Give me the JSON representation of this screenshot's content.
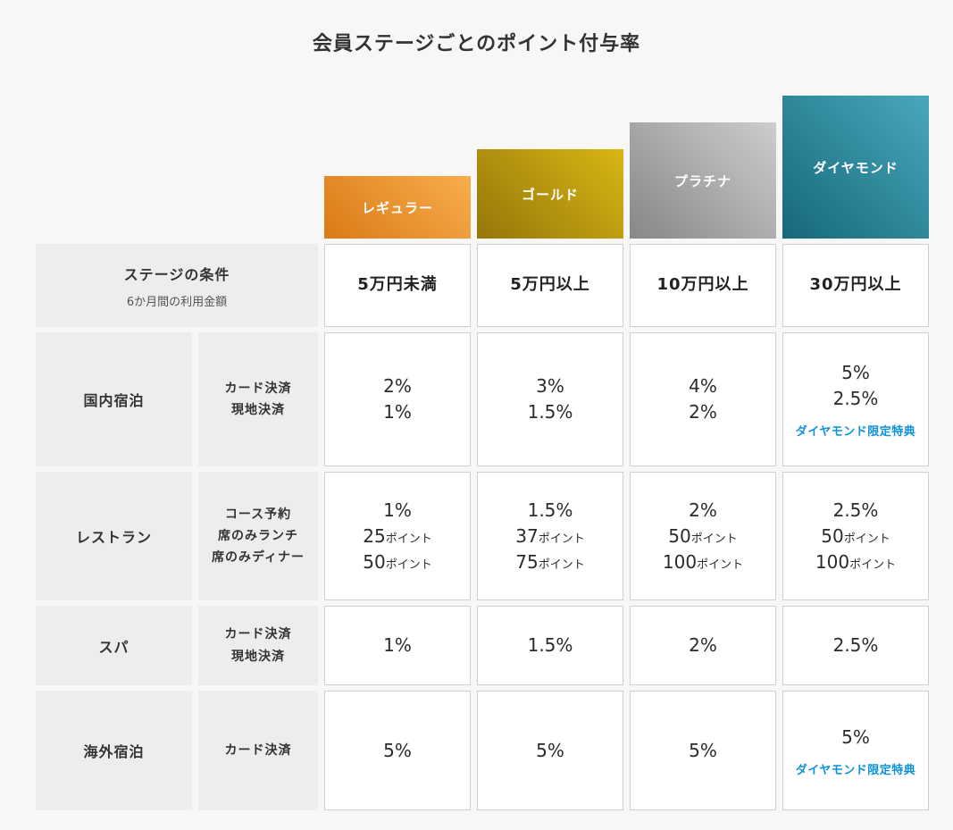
{
  "colors": {
    "page_background": "#f7f7f7",
    "label_cell_background": "#ededed",
    "value_cell_background": "#ffffff",
    "value_cell_border": "#cfcfcf",
    "text_color": "#333333",
    "link_color": "#0f92d9",
    "tier_regular_gradient": [
      "#da7a16",
      "#f8ad4e"
    ],
    "tier_gold_gradient": [
      "#95760a",
      "#d7b714"
    ],
    "tier_platinum_gradient": [
      "#878787",
      "#cdcdcd"
    ],
    "tier_diamond_gradient": [
      "#156879",
      "#4aa7bb"
    ]
  },
  "chart_data": {
    "type": "table",
    "title": "会員ステージごとのポイント付与率",
    "tiers": [
      "レギュラー",
      "ゴールド",
      "プラチナ",
      "ダイヤモンド"
    ],
    "rows": [
      {
        "category": "ステージの条件",
        "category_sub": "6か月間の利用金額",
        "cells": [
          {
            "lines": [
              {
                "num": "5万円未満",
                "unit": ""
              }
            ]
          },
          {
            "lines": [
              {
                "num": "5万円以上",
                "unit": ""
              }
            ]
          },
          {
            "lines": [
              {
                "num": "10万円以上",
                "unit": ""
              }
            ]
          },
          {
            "lines": [
              {
                "num": "30万円以上",
                "unit": ""
              }
            ]
          }
        ]
      },
      {
        "category": "国内宿泊",
        "methods": [
          "カード決済",
          "現地決済"
        ],
        "cells": [
          {
            "lines": [
              {
                "num": "2%",
                "unit": ""
              },
              {
                "num": "1%",
                "unit": ""
              }
            ]
          },
          {
            "lines": [
              {
                "num": "3%",
                "unit": ""
              },
              {
                "num": "1.5%",
                "unit": ""
              }
            ]
          },
          {
            "lines": [
              {
                "num": "4%",
                "unit": ""
              },
              {
                "num": "2%",
                "unit": ""
              }
            ]
          },
          {
            "lines": [
              {
                "num": "5%",
                "unit": ""
              },
              {
                "num": "2.5%",
                "unit": ""
              }
            ],
            "link": "ダイヤモンド限定特典"
          }
        ]
      },
      {
        "category": "レストラン",
        "methods": [
          "コース予約",
          "席のみランチ",
          "席のみディナー"
        ],
        "cells": [
          {
            "lines": [
              {
                "num": "1%",
                "unit": ""
              },
              {
                "num": "25",
                "unit": "ポイント"
              },
              {
                "num": "50",
                "unit": "ポイント"
              }
            ]
          },
          {
            "lines": [
              {
                "num": "1.5%",
                "unit": ""
              },
              {
                "num": "37",
                "unit": "ポイント"
              },
              {
                "num": "75",
                "unit": "ポイント"
              }
            ]
          },
          {
            "lines": [
              {
                "num": "2%",
                "unit": ""
              },
              {
                "num": "50",
                "unit": "ポイント"
              },
              {
                "num": "100",
                "unit": "ポイント"
              }
            ]
          },
          {
            "lines": [
              {
                "num": "2.5%",
                "unit": ""
              },
              {
                "num": "50",
                "unit": "ポイント"
              },
              {
                "num": "100",
                "unit": "ポイント"
              }
            ]
          }
        ]
      },
      {
        "category": "スパ",
        "methods": [
          "カード決済",
          "現地決済"
        ],
        "cells": [
          {
            "lines": [
              {
                "num": "1%",
                "unit": ""
              }
            ]
          },
          {
            "lines": [
              {
                "num": "1.5%",
                "unit": ""
              }
            ]
          },
          {
            "lines": [
              {
                "num": "2%",
                "unit": ""
              }
            ]
          },
          {
            "lines": [
              {
                "num": "2.5%",
                "unit": ""
              }
            ]
          }
        ]
      },
      {
        "category": "海外宿泊",
        "methods": [
          "カード決済"
        ],
        "cells": [
          {
            "lines": [
              {
                "num": "5%",
                "unit": ""
              }
            ]
          },
          {
            "lines": [
              {
                "num": "5%",
                "unit": ""
              }
            ]
          },
          {
            "lines": [
              {
                "num": "5%",
                "unit": ""
              }
            ]
          },
          {
            "lines": [
              {
                "num": "5%",
                "unit": ""
              }
            ],
            "link": "ダイヤモンド限定特典"
          }
        ]
      }
    ]
  }
}
